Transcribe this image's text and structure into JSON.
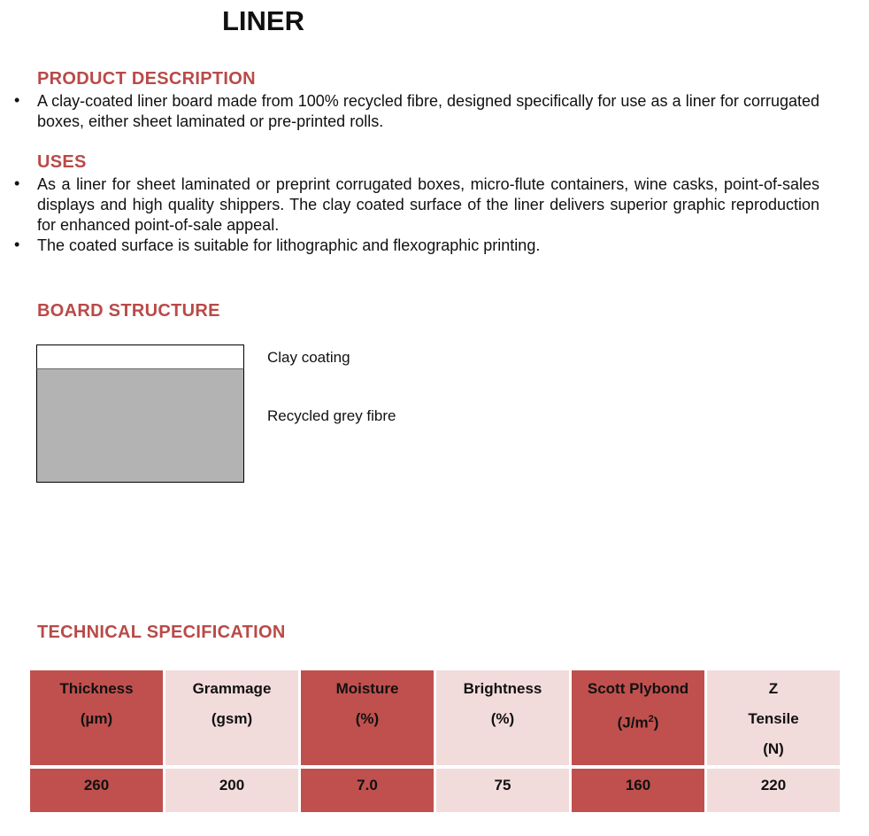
{
  "title": "LINER",
  "product_description": {
    "heading": "PRODUCT  DESCRIPTION",
    "bullets": [
      "A clay-coated liner board made from 100% recycled fibre, designed specifically for use as a liner for corrugated boxes, either sheet laminated or pre-printed rolls."
    ]
  },
  "uses": {
    "heading": "USES",
    "bullets": [
      "As a liner for sheet laminated or preprint corrugated boxes, micro-flute containers, wine casks, point-of-sales displays and high quality shippers. The clay coated surface of the liner delivers superior graphic reproduction for enhanced point-of-sale appeal.",
      "The coated surface is suitable for lithographic and flexographic printing."
    ]
  },
  "board_structure": {
    "heading": "BOARD  STRUCTURE",
    "layers": [
      "Clay coating",
      "Recycled grey fibre"
    ],
    "colors": {
      "coating": "#ffffff",
      "fibre": "#b3b3b3"
    }
  },
  "technical_specification": {
    "heading": "TECHNICAL SPECIFICATION",
    "colors": {
      "dark": "#c0504d",
      "light": "#f2dcdb",
      "heading": "#b94a48"
    },
    "headers": [
      {
        "line1": "Thickness",
        "line2": "(µm)"
      },
      {
        "line1": "Grammage",
        "line2": "(gsm)"
      },
      {
        "line1": "Moisture",
        "line2": "(%)"
      },
      {
        "line1": "Brightness",
        "line2": "(%)"
      },
      {
        "line1": "Scott  Plybond",
        "line2": "(J/m",
        "sup": "2",
        "close": ")"
      },
      {
        "line1": "Z",
        "line2": "Tensile",
        "line3": "(N)"
      }
    ],
    "values": [
      "260",
      "200",
      "7.0",
      "75",
      "160",
      "220"
    ]
  }
}
